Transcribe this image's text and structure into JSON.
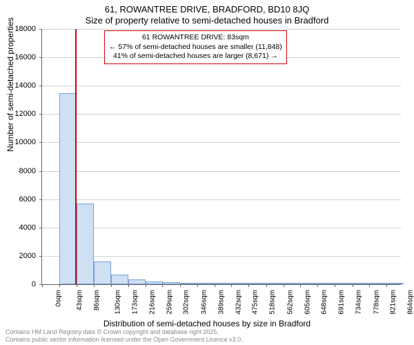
{
  "title_line1": "61, ROWANTREE DRIVE, BRADFORD, BD10 8JQ",
  "title_line2": "Size of property relative to semi-detached houses in Bradford",
  "annotation": {
    "line1": "61 ROWANTREE DRIVE: 83sqm",
    "line2": "← 57% of semi-detached houses are smaller (11,848)",
    "line3": "41% of semi-detached houses are larger (8,671) →",
    "border_color": "#cc0000",
    "fontsize": 10.5
  },
  "marker_line": {
    "x_value": 83,
    "color": "#cc0000",
    "width": 2
  },
  "chart": {
    "type": "histogram",
    "x_start": 0,
    "x_end": 900,
    "bar_bin_width": 43.2,
    "ylim": [
      0,
      18000
    ],
    "ytick_step": 2000,
    "yticks": [
      0,
      2000,
      4000,
      6000,
      8000,
      10000,
      12000,
      14000,
      16000,
      18000
    ],
    "xticks": [
      0,
      43,
      86,
      130,
      173,
      216,
      259,
      302,
      346,
      389,
      432,
      475,
      518,
      562,
      605,
      648,
      691,
      734,
      778,
      821,
      864
    ],
    "xtick_suffix": "sqm",
    "values": [
      0,
      13500,
      5700,
      1600,
      700,
      350,
      200,
      150,
      100,
      80,
      60,
      50,
      40,
      30,
      25,
      20,
      15,
      12,
      10,
      8,
      6
    ],
    "bar_fill": "#cfe0f5",
    "bar_border": "#7a9fd4",
    "grid_color": "#d0d0d0",
    "background": "#ffffff",
    "ylabel": "Number of semi-detached properties",
    "xlabel": "Distribution of semi-detached houses by size in Bradford",
    "label_fontsize": 12,
    "tick_fontsize": 11
  },
  "footer": {
    "line1": "Contains HM Land Registry data © Crown copyright and database right 2025.",
    "line2": "Contains public sector information licensed under the Open Government Licence v3.0.",
    "color": "#888888",
    "fontsize": 9
  }
}
